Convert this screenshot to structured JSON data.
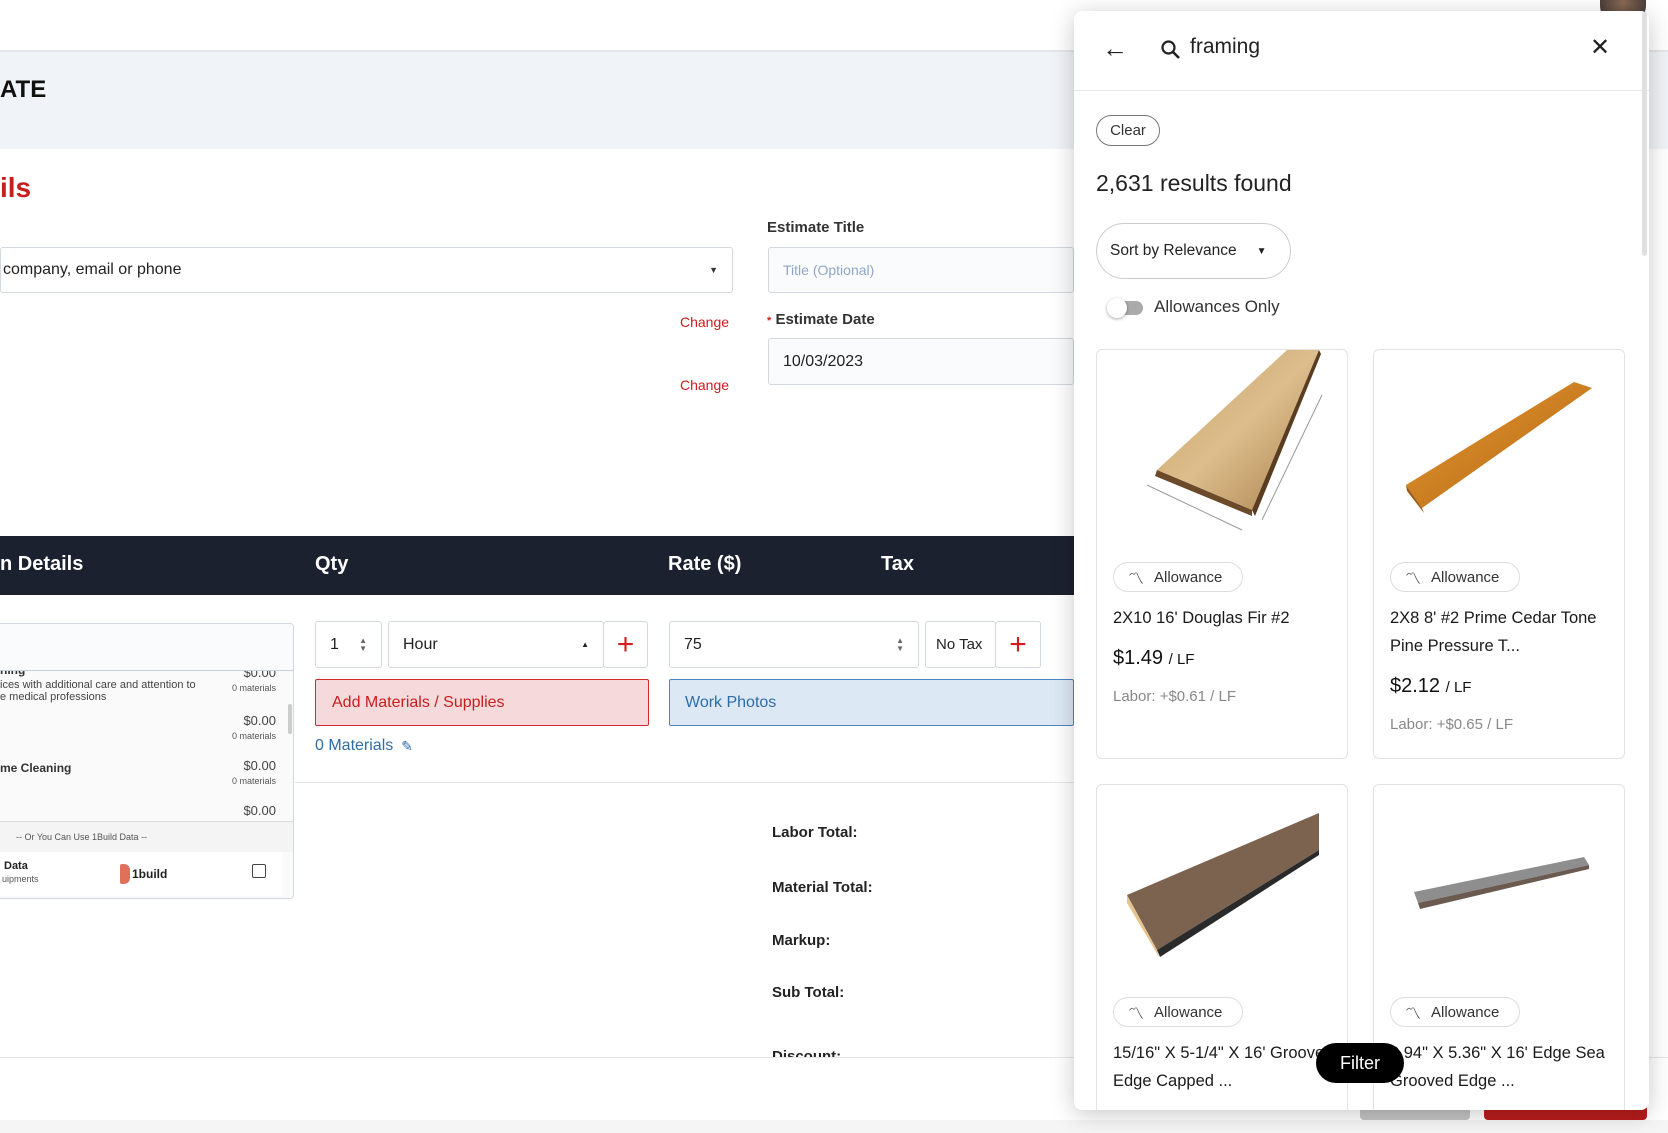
{
  "page": {
    "header_title": "ATE",
    "section_title": "ils"
  },
  "form": {
    "customer_placeholder": "company, email or phone",
    "estimate_title_label": "Estimate Title",
    "estimate_title_placeholder": "Title (Optional)",
    "estimate_date_label": "Estimate Date",
    "estimate_date_value": "10/03/2023",
    "change_1": "Change",
    "change_2": "Change",
    "required_mark": "*"
  },
  "table": {
    "headers": [
      "n Details",
      "Qty",
      "Rate ($)",
      "Tax"
    ],
    "qty": "1",
    "unit": "Hour",
    "rate": "75",
    "tax": "No Tax",
    "add_materials": "Add Materials / Supplies",
    "work_photos": "Work Photos",
    "materials_count": "0 Materials"
  },
  "dropdown": {
    "items": [
      {
        "title": "ning",
        "desc1": "ices with additional care and attention to",
        "desc2": "e medical professions",
        "price": "$0.00",
        "materials": "0 materials"
      },
      {
        "title": "",
        "desc1": "",
        "desc2": "",
        "price": "$0.00",
        "materials": "0 materials"
      },
      {
        "title": "me Cleaning",
        "desc1": "",
        "desc2": "",
        "price": "$0.00",
        "materials": "0 materials"
      },
      {
        "title": "",
        "desc1": "",
        "desc2": "",
        "price": "$0.00",
        "materials": ""
      }
    ],
    "divider_text": "-- Or You Can Use 1Build Data --",
    "onebuild_title": "Data",
    "onebuild_sub": "uipments",
    "onebuild_logo": "1build"
  },
  "totals": {
    "labor": "Labor Total:",
    "material": "Material Total:",
    "markup": "Markup:",
    "subtotal": "Sub Total:",
    "discount": "Discount:"
  },
  "panel": {
    "search_value": "framing",
    "clear": "Clear",
    "results": "2,631 results found",
    "sort": "Sort by Relevance",
    "allowances_only": "Allowances Only",
    "allowances_only_on": false,
    "filter": "Filter",
    "products": [
      {
        "badge": "Allowance",
        "name": "2X10 16' Douglas Fir #2",
        "price": "$1.49",
        "unit": "/ LF",
        "labor": "Labor: +$0.61 / LF"
      },
      {
        "badge": "Allowance",
        "name": "2X8 8' #2 Prime Cedar Tone Pine Pressure T...",
        "price": "$2.12",
        "unit": "/ LF",
        "labor": "Labor: +$0.65 / LF"
      },
      {
        "badge": "Allowance",
        "name": "15/16\" X 5-1/4\" X 16' Grooved Edge Capped ..."
      },
      {
        "badge": "Allowance",
        "name": "0.94\" X 5.36\" X 16' Edge Sea Grooved Edge ..."
      }
    ]
  },
  "colors": {
    "accent_red": "#c81e1e",
    "dark_header": "#1c2130",
    "link_blue": "#2e6ca8"
  }
}
